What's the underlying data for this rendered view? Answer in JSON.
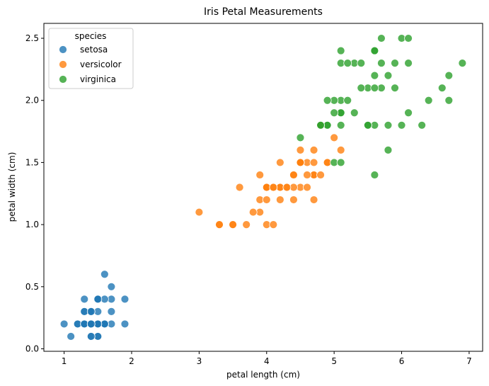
{
  "chart_data": {
    "type": "scatter",
    "title": "Iris Petal Measurements",
    "xlabel": "petal length (cm)",
    "ylabel": "petal width (cm)",
    "xlim": [
      0.7,
      7.2
    ],
    "ylim": [
      -0.02,
      2.62
    ],
    "x_ticks": [
      "1",
      "2",
      "3",
      "4",
      "5",
      "6",
      "7"
    ],
    "y_ticks": [
      "0.0",
      "0.5",
      "1.0",
      "1.5",
      "2.0",
      "2.5"
    ],
    "grid": false,
    "legend": {
      "title": "species",
      "placement": "top-left"
    },
    "series": [
      {
        "name": "setosa",
        "color": "#1f77b4",
        "points": [
          [
            1.4,
            0.2
          ],
          [
            1.4,
            0.2
          ],
          [
            1.3,
            0.2
          ],
          [
            1.5,
            0.2
          ],
          [
            1.4,
            0.2
          ],
          [
            1.7,
            0.4
          ],
          [
            1.4,
            0.3
          ],
          [
            1.5,
            0.2
          ],
          [
            1.4,
            0.2
          ],
          [
            1.5,
            0.1
          ],
          [
            1.5,
            0.2
          ],
          [
            1.6,
            0.2
          ],
          [
            1.4,
            0.1
          ],
          [
            1.1,
            0.1
          ],
          [
            1.2,
            0.2
          ],
          [
            1.5,
            0.4
          ],
          [
            1.3,
            0.4
          ],
          [
            1.4,
            0.3
          ],
          [
            1.7,
            0.3
          ],
          [
            1.5,
            0.3
          ],
          [
            1.7,
            0.2
          ],
          [
            1.5,
            0.4
          ],
          [
            1.0,
            0.2
          ],
          [
            1.7,
            0.5
          ],
          [
            1.9,
            0.2
          ],
          [
            1.6,
            0.2
          ],
          [
            1.6,
            0.4
          ],
          [
            1.5,
            0.2
          ],
          [
            1.4,
            0.2
          ],
          [
            1.6,
            0.2
          ],
          [
            1.6,
            0.2
          ],
          [
            1.5,
            0.4
          ],
          [
            1.5,
            0.1
          ],
          [
            1.4,
            0.2
          ],
          [
            1.5,
            0.2
          ],
          [
            1.2,
            0.2
          ],
          [
            1.3,
            0.2
          ],
          [
            1.4,
            0.1
          ],
          [
            1.3,
            0.2
          ],
          [
            1.5,
            0.2
          ],
          [
            1.3,
            0.3
          ],
          [
            1.3,
            0.3
          ],
          [
            1.3,
            0.2
          ],
          [
            1.6,
            0.6
          ],
          [
            1.9,
            0.4
          ],
          [
            1.4,
            0.3
          ],
          [
            1.6,
            0.2
          ],
          [
            1.4,
            0.2
          ],
          [
            1.5,
            0.2
          ],
          [
            1.4,
            0.2
          ]
        ]
      },
      {
        "name": "versicolor",
        "color": "#ff7f0e",
        "points": [
          [
            4.7,
            1.4
          ],
          [
            4.5,
            1.5
          ],
          [
            4.9,
            1.5
          ],
          [
            4.0,
            1.3
          ],
          [
            4.6,
            1.5
          ],
          [
            4.5,
            1.3
          ],
          [
            4.7,
            1.6
          ],
          [
            3.3,
            1.0
          ],
          [
            4.6,
            1.3
          ],
          [
            3.9,
            1.4
          ],
          [
            3.5,
            1.0
          ],
          [
            4.2,
            1.5
          ],
          [
            4.0,
            1.0
          ],
          [
            4.7,
            1.4
          ],
          [
            3.6,
            1.3
          ],
          [
            4.4,
            1.4
          ],
          [
            4.5,
            1.5
          ],
          [
            4.1,
            1.0
          ],
          [
            4.5,
            1.5
          ],
          [
            3.9,
            1.1
          ],
          [
            4.8,
            1.8
          ],
          [
            4.0,
            1.3
          ],
          [
            4.9,
            1.5
          ],
          [
            4.7,
            1.2
          ],
          [
            4.3,
            1.3
          ],
          [
            4.4,
            1.4
          ],
          [
            4.8,
            1.4
          ],
          [
            5.0,
            1.7
          ],
          [
            4.5,
            1.5
          ],
          [
            3.5,
            1.0
          ],
          [
            3.8,
            1.1
          ],
          [
            3.7,
            1.0
          ],
          [
            3.9,
            1.2
          ],
          [
            5.1,
            1.6
          ],
          [
            4.5,
            1.5
          ],
          [
            4.5,
            1.6
          ],
          [
            4.7,
            1.5
          ],
          [
            4.4,
            1.3
          ],
          [
            4.1,
            1.3
          ],
          [
            4.0,
            1.3
          ],
          [
            4.4,
            1.2
          ],
          [
            4.6,
            1.4
          ],
          [
            4.0,
            1.2
          ],
          [
            3.3,
            1.0
          ],
          [
            4.2,
            1.3
          ],
          [
            4.2,
            1.2
          ],
          [
            4.2,
            1.3
          ],
          [
            4.3,
            1.3
          ],
          [
            3.0,
            1.1
          ],
          [
            4.1,
            1.3
          ]
        ]
      },
      {
        "name": "virginica",
        "color": "#2ca02c",
        "points": [
          [
            6.0,
            2.5
          ],
          [
            5.1,
            1.9
          ],
          [
            5.9,
            2.1
          ],
          [
            5.6,
            1.8
          ],
          [
            5.8,
            2.2
          ],
          [
            6.6,
            2.1
          ],
          [
            4.5,
            1.7
          ],
          [
            6.3,
            1.8
          ],
          [
            5.8,
            1.8
          ],
          [
            6.1,
            2.5
          ],
          [
            5.1,
            2.0
          ],
          [
            5.3,
            1.9
          ],
          [
            5.5,
            2.1
          ],
          [
            5.0,
            2.0
          ],
          [
            5.1,
            2.4
          ],
          [
            5.3,
            2.3
          ],
          [
            5.5,
            1.8
          ],
          [
            6.7,
            2.2
          ],
          [
            6.9,
            2.3
          ],
          [
            5.0,
            1.5
          ],
          [
            5.7,
            2.3
          ],
          [
            4.9,
            2.0
          ],
          [
            6.7,
            2.0
          ],
          [
            4.9,
            1.8
          ],
          [
            5.7,
            2.1
          ],
          [
            6.0,
            1.8
          ],
          [
            4.8,
            1.8
          ],
          [
            4.9,
            1.8
          ],
          [
            5.6,
            2.1
          ],
          [
            5.8,
            1.6
          ],
          [
            6.1,
            1.9
          ],
          [
            6.4,
            2.0
          ],
          [
            5.6,
            2.2
          ],
          [
            5.1,
            1.5
          ],
          [
            5.6,
            1.4
          ],
          [
            6.1,
            2.3
          ],
          [
            5.6,
            2.4
          ],
          [
            5.5,
            1.8
          ],
          [
            4.8,
            1.8
          ],
          [
            5.4,
            2.1
          ],
          [
            5.6,
            2.4
          ],
          [
            5.1,
            2.3
          ],
          [
            5.1,
            1.9
          ],
          [
            5.9,
            2.3
          ],
          [
            5.7,
            2.5
          ],
          [
            5.2,
            2.3
          ],
          [
            5.0,
            1.9
          ],
          [
            5.2,
            2.0
          ],
          [
            5.4,
            2.3
          ],
          [
            5.1,
            1.8
          ]
        ]
      }
    ]
  }
}
